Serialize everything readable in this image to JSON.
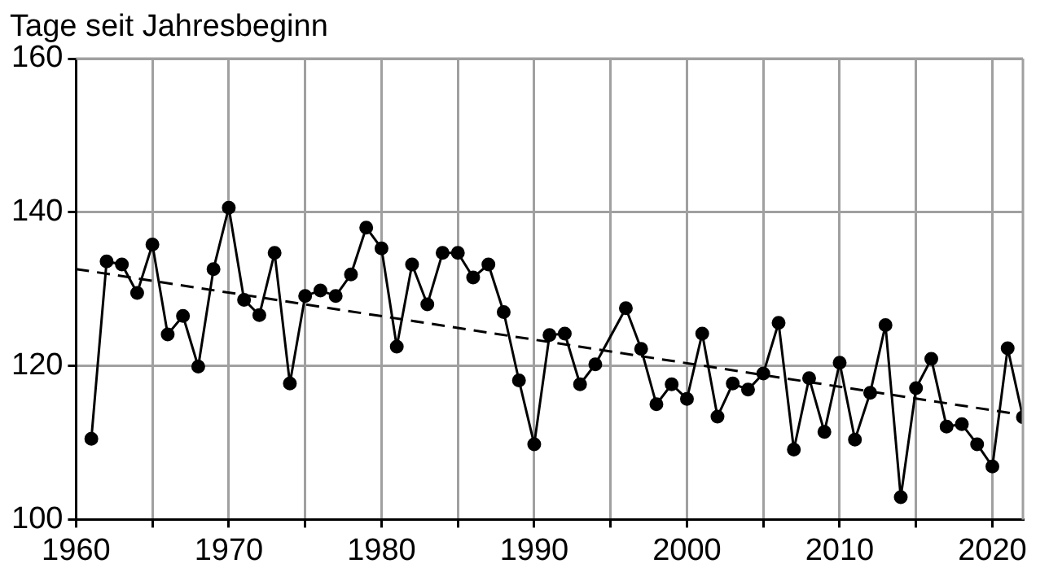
{
  "chart_data": {
    "type": "line",
    "ylabel": "Tage seit Jahresbeginn",
    "x": [
      1961,
      1962,
      1963,
      1964,
      1965,
      1966,
      1967,
      1968,
      1969,
      1970,
      1971,
      1972,
      1973,
      1974,
      1975,
      1976,
      1977,
      1978,
      1979,
      1980,
      1981,
      1982,
      1983,
      1984,
      1985,
      1986,
      1987,
      1988,
      1989,
      1990,
      1991,
      1992,
      1993,
      1994,
      1995,
      1996,
      1997,
      1998,
      1999,
      2000,
      2001,
      2002,
      2003,
      2004,
      2005,
      2006,
      2007,
      2008,
      2009,
      2010,
      2011,
      2012,
      2013,
      2014,
      2015,
      2016,
      2017,
      2018,
      2019,
      2020,
      2021,
      2022
    ],
    "series": [
      {
        "color": "#000000",
        "marker": "circle",
        "line_style": "solid",
        "values": [
          110.5,
          133.6,
          133.2,
          129.5,
          135.8,
          124.1,
          126.5,
          119.9,
          132.6,
          140.6,
          128.6,
          126.6,
          134.7,
          117.7,
          129.1,
          129.8,
          129.1,
          131.9,
          138.0,
          135.3,
          122.5,
          133.2,
          128.0,
          134.7,
          134.7,
          131.5,
          133.2,
          127.0,
          118.1,
          109.8,
          124.0,
          124.2,
          117.6,
          120.2,
          null,
          127.5,
          122.2,
          115.0,
          117.6,
          115.7,
          124.2,
          113.4,
          117.7,
          116.9,
          119.0,
          125.6,
          109.1,
          118.4,
          111.4,
          120.4,
          110.4,
          116.5,
          125.3,
          102.9,
          117.1,
          120.9,
          112.1,
          112.4,
          109.8,
          106.9,
          122.3,
          113.3
        ]
      },
      {
        "type": "line",
        "color": "#000000",
        "marker": "none",
        "line_style": "dashed",
        "x": [
          1960,
          2022
        ],
        "values": [
          132.6,
          113.6
        ]
      }
    ],
    "xlim": [
      1960,
      2022
    ],
    "xticks": [
      1960,
      {
        "value": 1965,
        "label": null
      },
      1970,
      {
        "value": 1975,
        "label": null
      },
      1980,
      {
        "value": 1985,
        "label": null
      },
      1990,
      {
        "value": 1995,
        "label": null
      },
      2000,
      {
        "value": 2005,
        "label": null
      },
      2010,
      {
        "value": 2015,
        "label": null
      },
      2020
    ],
    "ylim": [
      100,
      160
    ],
    "yticks": [
      100,
      120,
      140,
      160
    ],
    "grid": true,
    "legend": false
  }
}
